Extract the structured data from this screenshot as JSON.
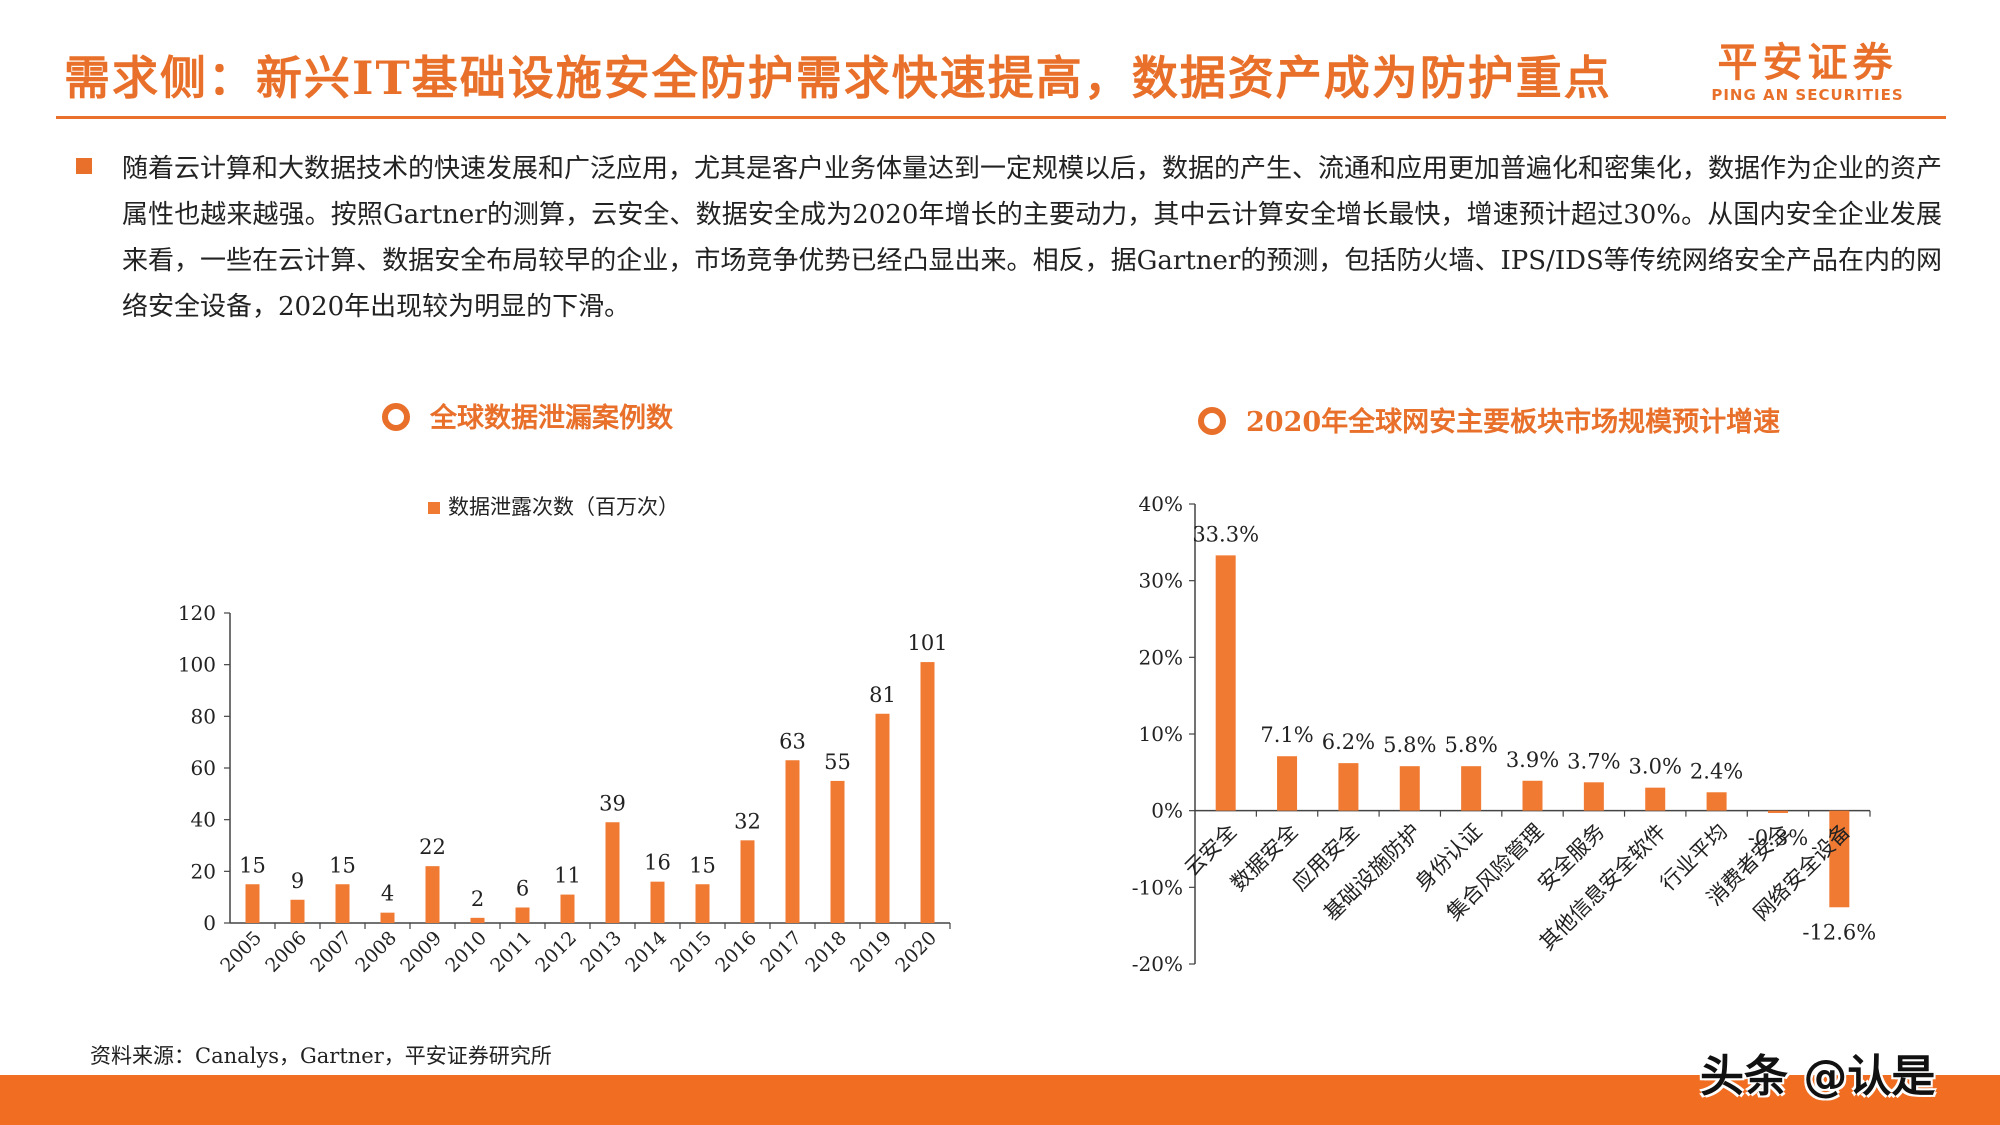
{
  "header": {
    "title": "需求侧：新兴IT基础设施安全防护需求快速提高，数据资产成为防护重点",
    "logo_cn": "平安证券",
    "logo_en": "PING AN SECURITIES"
  },
  "paragraph": "随着云计算和大数据技术的快速发展和广泛应用，尤其是客户业务体量达到一定规模以后，数据的产生、流通和应用更加普遍化和密集化，数据作为企业的资产属性也越来越强。按照Gartner的测算，云安全、数据安全成为2020年增长的主要动力，其中云计算安全增长最快，增速预计超过30%。从国内安全企业发展来看，一些在云计算、数据安全布局较早的企业，市场竞争优势已经凸显出来。相反，据Gartner的预测，包括防火墙、IPS/IDS等传统网络安全产品在内的网络安全设备，2020年出现较为明显的下滑。",
  "colors": {
    "accent": "#e8702a",
    "bar": "#f07a32",
    "footer": "#f06d22"
  },
  "chart_data": [
    {
      "type": "bar",
      "title": "全球数据泄漏案例数",
      "legend": "数据泄露次数（百万次）",
      "legend_position": "top",
      "categories": [
        "2005",
        "2006",
        "2007",
        "2008",
        "2009",
        "2010",
        "2011",
        "2012",
        "2013",
        "2014",
        "2015",
        "2016",
        "2017",
        "2018",
        "2019",
        "2020"
      ],
      "series": [
        {
          "name": "数据泄露次数（百万次）",
          "values": [
            15,
            9,
            15,
            4,
            22,
            2,
            6,
            11,
            39,
            16,
            15,
            32,
            63,
            55,
            81,
            101
          ]
        }
      ],
      "data_labels": [
        "15",
        "9",
        "15",
        "4",
        "22",
        "2",
        "6",
        "11",
        "39",
        "16",
        "15",
        "32",
        "63",
        "55",
        "81",
        "101"
      ],
      "ylim": [
        0,
        120
      ],
      "yticks": [
        "0",
        "20",
        "40",
        "60",
        "80",
        "100",
        "120"
      ],
      "grid": false
    },
    {
      "type": "bar",
      "title": "2020年全球网安主要板块市场规模预计增速",
      "categories": [
        "云安全",
        "数据安全",
        "应用安全",
        "基础设施防护",
        "身份认证",
        "集合风险管理",
        "安全服务",
        "其他信息安全软件",
        "行业平均",
        "消费者安全",
        "网络安全设备"
      ],
      "values": [
        33.3,
        7.1,
        6.2,
        5.8,
        5.8,
        3.9,
        3.7,
        3.0,
        2.4,
        -0.3,
        -12.6
      ],
      "data_labels": [
        "33.3%",
        "7.1%",
        "6.2%",
        "5.8%",
        "5.8%",
        "3.9%",
        "3.7%",
        "3.0%",
        "2.4%",
        "-0.3%",
        "-12.6%"
      ],
      "ylim": [
        -20,
        40
      ],
      "yticks": [
        "-20%",
        "-10%",
        "0%",
        "10%",
        "20%",
        "30%",
        "40%"
      ],
      "grid": false
    }
  ],
  "source": "资料来源：Canalys，Gartner，平安证券研究所",
  "watermark": "头条 @认是"
}
